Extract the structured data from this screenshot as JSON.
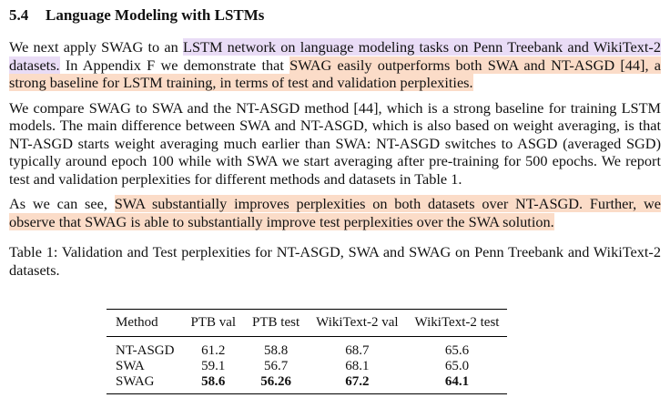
{
  "section": {
    "number": "5.4",
    "title": "Language Modeling with LSTMs"
  },
  "paragraph1": {
    "s1": "We next apply SWAG to an ",
    "s2": "LSTM network on language modeling tasks on Penn Treebank and WikiText-2 datasets.",
    "s3": " In Appendix F we demonstrate that ",
    "s4": "SWAG easily outperforms both SWA and NT-ASGD [44], a strong baseline for LSTM training, in terms of test and validation perplexities."
  },
  "paragraph2": {
    "text": "We compare SWAG to SWA and the NT-ASGD method [44], which is a strong baseline for training LSTM models. The main difference between SWA and NT-ASGD, which is also based on weight averaging, is that NT-ASGD starts weight averaging much earlier than SWA: NT-ASGD switches to ASGD (averaged SGD) typically around epoch 100 while with SWA we start averaging after pre-training for 500 epochs.  We report test and validation perplexities for different methods and datasets in Table 1."
  },
  "paragraph3": {
    "s1": "As we can see, ",
    "s2": "SWA substantially improves perplexities on both datasets over NT-ASGD. Further, we observe that SWAG is able to substantially improve test perplexities over the SWA solution."
  },
  "table": {
    "caption": "Table 1: Validation and Test perplexities for NT-ASGD, SWA and SWAG on Penn Treebank and WikiText-2 datasets.",
    "headers": [
      "Method",
      "PTB val",
      "PTB test",
      "WikiText-2 val",
      "WikiText-2 test"
    ],
    "rows": [
      {
        "method": "NT-ASGD",
        "ptb_val": "61.2",
        "ptb_test": "58.8",
        "wt2_val": "68.7",
        "wt2_test": "65.6"
      },
      {
        "method": "SWA",
        "ptb_val": "59.1",
        "ptb_test": "56.7",
        "wt2_val": "68.1",
        "wt2_test": "65.0"
      },
      {
        "method": "SWAG",
        "ptb_val": "58.6",
        "ptb_test": "56.26",
        "wt2_val": "67.2",
        "wt2_test": "64.1"
      }
    ]
  },
  "highlight_colors": {
    "purple": "#e9dcf6",
    "orange": "#fbdcc8"
  }
}
